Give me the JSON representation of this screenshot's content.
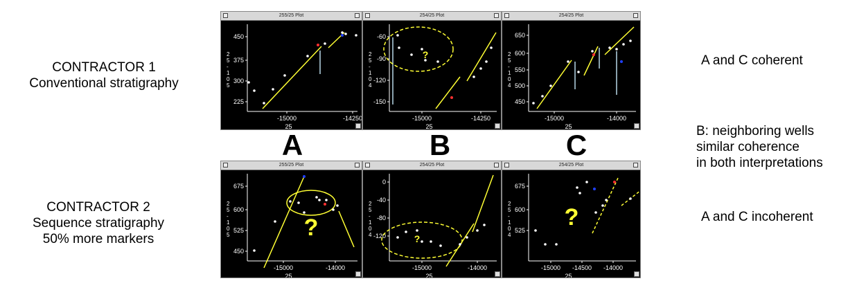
{
  "left_labels": {
    "contractor1": {
      "title": "CONTRACTOR 1",
      "subtitle": "Conventional stratigraphy"
    },
    "contractor2": {
      "title": "CONTRACTOR 2",
      "subtitle": "Sequence stratigraphy",
      "detail": "50% more markers"
    }
  },
  "right_labels": {
    "top": "A and C coherent",
    "middle": [
      "B: neighboring wells",
      "similar coherence",
      "in both interpretations"
    ],
    "bottom": "A and C incoherent"
  },
  "letters": [
    "A",
    "B",
    "C"
  ],
  "windows": [
    {
      "title": "255/25 Plot",
      "xlabel": "25",
      "ylabel": "2 5 - 1 0 5",
      "xticks": [
        "-15000",
        "-14250"
      ],
      "yticks": [
        "450",
        "375",
        "300",
        "225"
      ]
    },
    {
      "title": "254/25 Plot",
      "xlabel": "25",
      "ylabel": "2 5 - 1 0 4",
      "xticks": [
        "-15000",
        "-14250"
      ],
      "yticks": [
        "-60",
        "-90",
        "-120",
        "-150"
      ],
      "annotation": "?"
    },
    {
      "title": "254/25 Plot",
      "xlabel": "25",
      "ylabel": "2 5 - 1 0 4",
      "xticks": [
        "-15000",
        "-14000"
      ],
      "yticks": [
        "650",
        "600",
        "550",
        "500",
        "450"
      ]
    },
    {
      "title": "255/25 Plot",
      "xlabel": "25",
      "ylabel": "2 5 - 1 0 5",
      "xticks": [
        "-15000",
        "-14000"
      ],
      "yticks": [
        "675",
        "600",
        "525",
        "450"
      ],
      "annotation": "?"
    },
    {
      "title": "254/25 Plot",
      "xlabel": "25",
      "ylabel": "2 5 - 1 0 4",
      "xticks": [
        "-15000",
        "-14000"
      ],
      "yticks": [
        "0",
        "-40",
        "-80",
        "-120"
      ],
      "annotation": "?"
    },
    {
      "title": "254/25 Plot",
      "xlabel": "25",
      "ylabel": "2 5 - 1 0 4",
      "xticks": [
        "-15000",
        "-14500",
        "-14000"
      ],
      "yticks": [
        "675",
        "600",
        "525"
      ],
      "annotation": "?"
    }
  ],
  "colors": {
    "window_bg": "#000000",
    "line": "#ffff33",
    "point": "#ffffff",
    "marker_red": "#ff3030",
    "marker_blue": "#2040ff",
    "fault": "#b8d8e8"
  }
}
